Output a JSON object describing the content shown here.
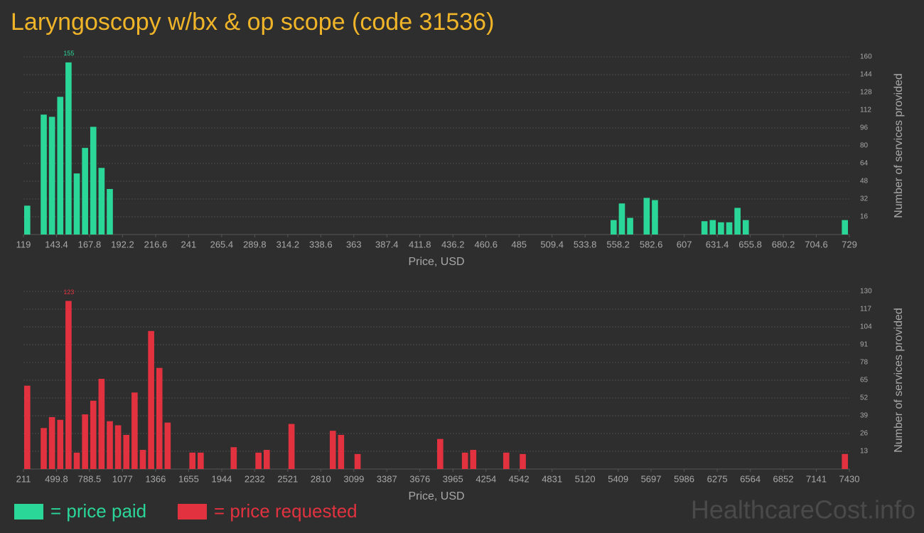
{
  "title": "Laryngoscopy w/bx & op scope (code 31536)",
  "watermark": "HealthcareCost.info",
  "chart_data": [
    {
      "type": "histogram",
      "x_label": "Price, USD",
      "y_label": "Number of services provided",
      "bins": [
        119,
        125.1,
        131.2,
        137.3,
        143.4,
        149.5,
        155.6,
        161.7,
        167.8,
        173.9,
        180,
        186.1,
        192.2,
        198.3,
        204.4,
        210.5,
        216.6,
        222.7,
        228.8,
        234.9,
        241,
        247.1,
        253.2,
        259.3,
        265.4,
        271.5,
        277.6,
        283.7,
        289.8,
        295.9,
        302,
        308.1,
        314.2,
        320.3,
        326.4,
        332.5,
        338.6,
        344.7,
        350.8,
        356.9,
        363,
        369.1,
        375.2,
        381.3,
        387.4,
        393.5,
        399.6,
        405.7,
        411.8,
        417.9,
        424,
        430.1,
        436.2,
        442.3,
        448.4,
        454.5,
        460.6,
        466.7,
        472.8,
        478.9,
        485,
        491.1,
        497.2,
        503.3,
        509.4,
        515.5,
        521.6,
        527.7,
        533.8,
        539.9,
        546,
        552.1,
        558.2,
        564.3,
        570.4,
        576.5,
        582.6,
        588.7,
        594.8,
        600.9,
        607,
        613.1,
        619.2,
        625.3,
        631.4,
        637.5,
        643.6,
        649.7,
        655.8,
        661.9,
        668,
        674.1,
        680.2,
        686.3,
        692.4,
        698.5,
        704.6,
        710.7,
        716.8,
        722.9,
        729
      ],
      "series": [
        {
          "name": "= price paid",
          "color": "#2bd699",
          "values": [
            26,
            0,
            108,
            106,
            124,
            155,
            55,
            78,
            97,
            60,
            41,
            0,
            0,
            0,
            0,
            0,
            0,
            0,
            0,
            0,
            0,
            0,
            0,
            0,
            0,
            0,
            0,
            0,
            0,
            0,
            0,
            0,
            0,
            0,
            0,
            0,
            0,
            0,
            0,
            0,
            0,
            0,
            0,
            0,
            0,
            0,
            0,
            0,
            0,
            0,
            0,
            0,
            0,
            0,
            0,
            0,
            0,
            0,
            0,
            0,
            0,
            0,
            0,
            0,
            0,
            0,
            0,
            0,
            0,
            0,
            0,
            13,
            28,
            15,
            0,
            33,
            31,
            0,
            0,
            0,
            0,
            0,
            12,
            13,
            11,
            11,
            24,
            13,
            0,
            0,
            0,
            0,
            0,
            0,
            0,
            0,
            0,
            0,
            0,
            13
          ]
        }
      ],
      "xlim": [
        119,
        729
      ],
      "xticks": [
        119,
        143.4,
        167.8,
        192.2,
        216.6,
        241,
        265.4,
        289.8,
        314.2,
        338.6,
        363,
        387.4,
        411.8,
        436.2,
        460.6,
        485,
        509.4,
        533.8,
        558.2,
        582.6,
        607,
        631.4,
        655.8,
        680.2,
        704.6,
        729
      ],
      "ylim": [
        0,
        160
      ],
      "yticks": [
        16,
        32,
        48,
        64,
        80,
        96,
        112,
        128,
        144,
        160
      ],
      "grid": true
    },
    {
      "type": "histogram",
      "x_label": "Price, USD",
      "y_label": "Number of services provided",
      "bins": [
        211,
        283.19,
        355.38,
        427.57,
        499.76,
        571.95,
        644.14,
        716.33,
        788.52,
        860.71,
        932.9,
        1005.09,
        1077.28,
        1149.47,
        1221.66,
        1293.85,
        1366.04,
        1438.23,
        1510.42,
        1582.61,
        1654.8,
        1726.99,
        1799.18,
        1871.37,
        1943.56,
        2015.75,
        2087.94,
        2160.13,
        2232.32,
        2304.51,
        2376.7,
        2448.89,
        2521.08,
        2593.27,
        2665.46,
        2737.65,
        2809.84,
        2882.03,
        2954.22,
        3026.41,
        3098.6,
        3170.79,
        3242.98,
        3315.17,
        3387.36,
        3459.55,
        3531.74,
        3603.93,
        3676.12,
        3748.31,
        3820.5,
        3892.69,
        3964.88,
        4037.07,
        4109.26,
        4181.45,
        4253.64,
        4325.83,
        4398.02,
        4470.21,
        4542.4,
        4614.59,
        4686.78,
        4758.97,
        4831.16,
        4903.35,
        4975.54,
        5047.73,
        5119.92,
        5192.11,
        5264.3,
        5336.49,
        5408.68,
        5480.87,
        5553.06,
        5625.25,
        5697.44,
        5769.63,
        5841.82,
        5914.01,
        5986.2,
        6058.39,
        6130.58,
        6202.77,
        6274.96,
        6347.15,
        6419.34,
        6491.53,
        6563.72,
        6635.91,
        6708.1,
        6780.29,
        6852.48,
        6924.67,
        6996.86,
        7069.05,
        7141.24,
        7213.43,
        7285.62,
        7357.81,
        7430
      ],
      "series": [
        {
          "name": "= price requested",
          "color": "#e2323f",
          "values": [
            61,
            0,
            30,
            38,
            36,
            123,
            12,
            40,
            50,
            66,
            35,
            32,
            25,
            56,
            14,
            101,
            74,
            34,
            0,
            0,
            12,
            12,
            0,
            0,
            0,
            16,
            0,
            0,
            12,
            14,
            0,
            0,
            33,
            0,
            0,
            0,
            0,
            28,
            25,
            0,
            11,
            0,
            0,
            0,
            0,
            0,
            0,
            0,
            0,
            0,
            22,
            0,
            0,
            12,
            14,
            0,
            0,
            0,
            12,
            0,
            11,
            0,
            0,
            0,
            0,
            0,
            0,
            0,
            0,
            0,
            0,
            0,
            0,
            0,
            0,
            0,
            0,
            0,
            0,
            0,
            0,
            0,
            0,
            0,
            0,
            0,
            0,
            0,
            0,
            0,
            0,
            0,
            0,
            0,
            0,
            0,
            0,
            0,
            0,
            11
          ]
        }
      ],
      "xlim": [
        211,
        7430
      ],
      "xticks": [
        211,
        499.8,
        788.5,
        1077,
        1366,
        1655,
        1944,
        2232,
        2521,
        2810,
        3099,
        3387,
        3676,
        3965,
        4254,
        4542,
        4831,
        5120,
        5409,
        5697,
        5986,
        6275,
        6564,
        6852,
        7141,
        7430
      ],
      "ylim": [
        0,
        130
      ],
      "yticks": [
        13,
        26,
        39,
        52,
        65,
        78,
        91,
        104,
        117,
        130
      ],
      "grid": true
    }
  ]
}
